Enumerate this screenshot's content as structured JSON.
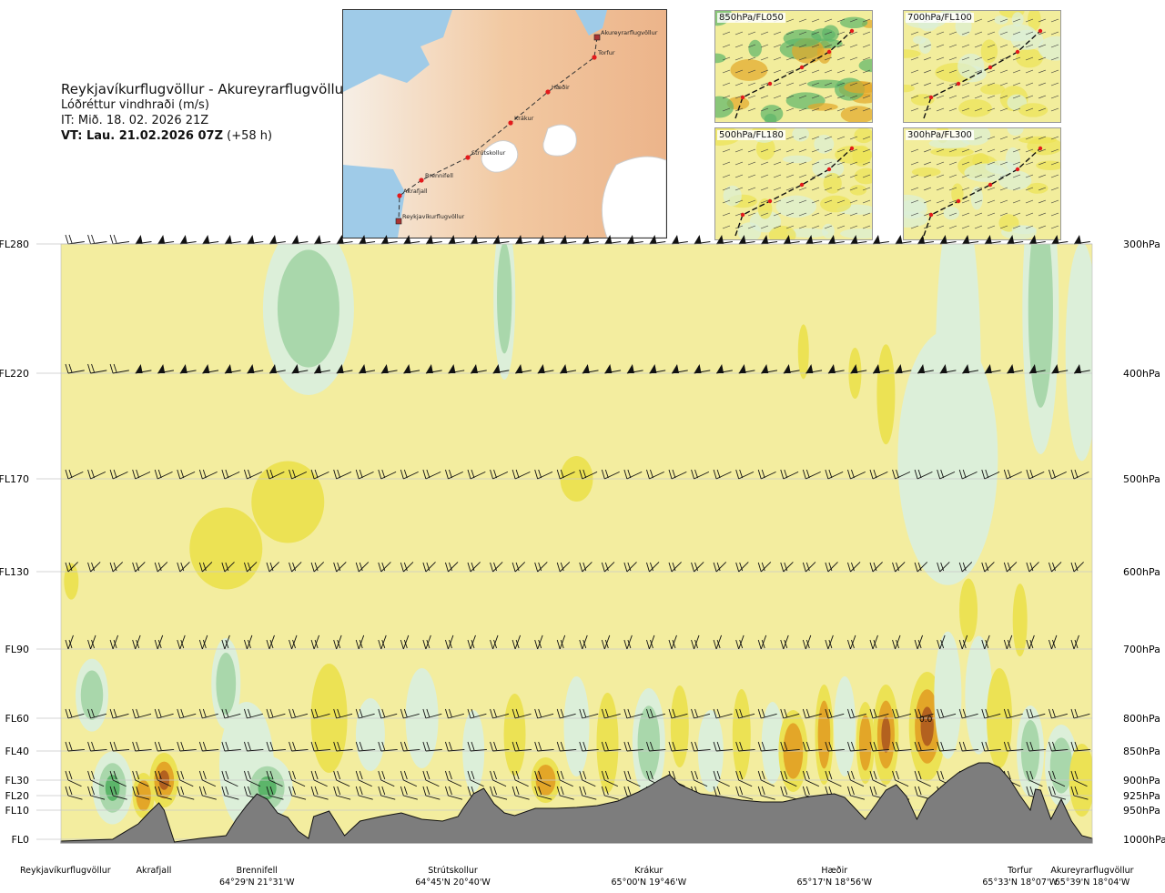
{
  "header": {
    "route": "Reykjavíkurflugvöllur - Akureyrarflugvöllur",
    "quantity": "Lóðréttur vindhraði (m/s)",
    "issue_time": "IT: Mið. 18. 02. 2026 21Z",
    "valid_prefix": "VT: Lau. 21.02.2026 07Z",
    "valid_suffix": "(+58 h)"
  },
  "route_map": {
    "waypoints": [
      "Akureyrarflugvöllur",
      "Torfur",
      "Hæðir",
      "Krákur",
      "Strútskollur",
      "Brennifell",
      "Akrafjall",
      "Reykjavíkurflugvöllur"
    ]
  },
  "mini_maps": [
    {
      "label": "850hPa/FL050"
    },
    {
      "label": "700hPa/FL100"
    },
    {
      "label": "500hPa/FL180"
    },
    {
      "label": "300hPa/FL300"
    }
  ],
  "colors": {
    "background_field": "#f3ed9f",
    "updraft_light": "#dcefd9",
    "updraft_mid": "#a9d7ab",
    "updraft_strong": "#5cb56a",
    "downdraft_light": "#ece254",
    "downdraft_mid": "#e3a628",
    "downdraft_strong": "#b3611f",
    "terrain": "#7d7d7d"
  },
  "chart_data": {
    "type": "heatmap",
    "title": "Lóðréttur vindhraði (m/s)",
    "xlabel": "",
    "ylabel": "",
    "y_levels_left": [
      "FL280",
      "FL220",
      "FL170",
      "FL130",
      "FL90",
      "FL60",
      "FL40",
      "FL30",
      "FL20",
      "FL10",
      "FL0"
    ],
    "y_levels_right": [
      "300hPa",
      "400hPa",
      "500hPa",
      "600hPa",
      "700hPa",
      "800hPa",
      "850hPa",
      "900hPa",
      "925hPa",
      "950hPa",
      "1000hPa"
    ],
    "flight_levels": [
      280,
      220,
      170,
      130,
      90,
      60,
      40,
      30,
      20,
      10,
      0
    ],
    "x_route_fraction_range": [
      0,
      1
    ],
    "stations": [
      {
        "name": "Reykjavíkurflugvöllur",
        "coord": "",
        "route_frac": -0.04
      },
      {
        "name": "Akrafjall",
        "coord": "",
        "route_frac": 0.09
      },
      {
        "name": "Brennifell",
        "coord": "64°29'N 21°31'W",
        "route_frac": 0.19
      },
      {
        "name": "Strútskollur",
        "coord": "64°45'N 20°40'W",
        "route_frac": 0.38
      },
      {
        "name": "Krákur",
        "coord": "65°00'N 19°46'W",
        "route_frac": 0.57
      },
      {
        "name": "Hæðir",
        "coord": "65°17'N 18°56'W",
        "route_frac": 0.75
      },
      {
        "name": "Torfur",
        "coord": "65°33'N 18°07'W",
        "route_frac": 0.93
      },
      {
        "name": "Akureyrarflugvöllur",
        "coord": "65°39'N 18°04'W",
        "route_frac": 1.0
      }
    ],
    "annotation": "0.0"
  }
}
